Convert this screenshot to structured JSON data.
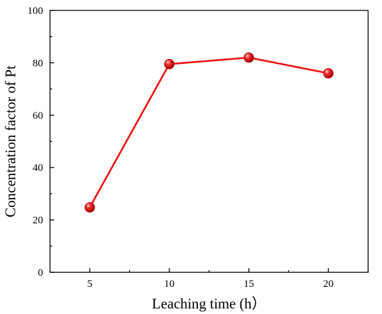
{
  "chart_data": {
    "type": "line",
    "title": "",
    "xlabel": "Leaching time (h）",
    "ylabel": "Concentration factor of Pt",
    "xlim": [
      2.5,
      22.5
    ],
    "ylim": [
      0,
      100
    ],
    "xticks": [
      5,
      10,
      15,
      20
    ],
    "yticks": [
      0,
      20,
      40,
      60,
      80,
      100
    ],
    "grid": false,
    "legend": "none",
    "colors": {
      "line": "#ee1111",
      "marker": "#dd1010",
      "marker_highlight": "#ffd0d0"
    },
    "series": [
      {
        "x": [
          5,
          10,
          15,
          20
        ],
        "y": [
          24.8,
          79.5,
          82.0,
          76.0
        ]
      }
    ]
  }
}
